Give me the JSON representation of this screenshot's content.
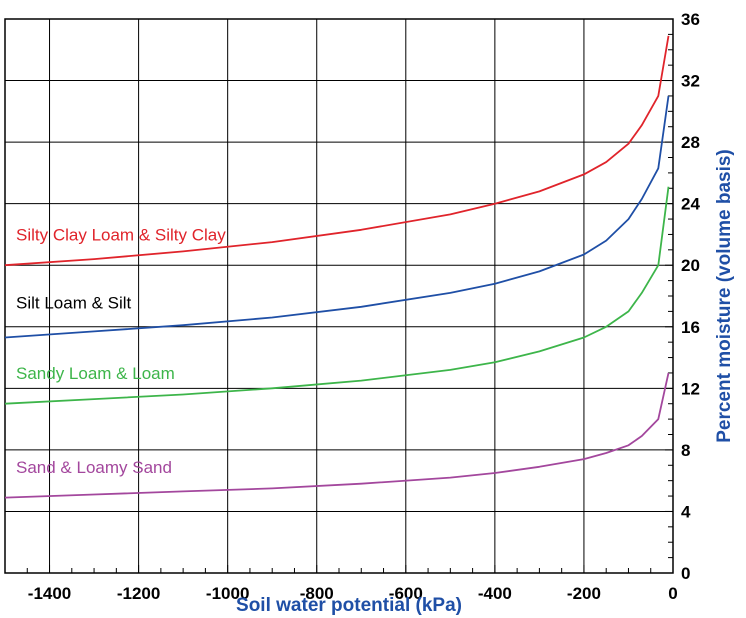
{
  "chart_data": {
    "type": "line",
    "title": "",
    "xlabel": "Soil water potential (kPa)",
    "ylabel": "Percent moisture (volume basis)",
    "xlim": [
      -1500,
      0
    ],
    "ylim": [
      0,
      36
    ],
    "xticks": [
      -1400,
      -1200,
      -1000,
      -800,
      -600,
      -400,
      -200,
      0
    ],
    "yticks": [
      0,
      4,
      8,
      12,
      16,
      20,
      24,
      28,
      32,
      36
    ],
    "grid": true,
    "series": [
      {
        "name": "Silty Clay Loam & Silty Clay",
        "color": "#e0242b",
        "x": [
          -1500,
          -1300,
          -1100,
          -900,
          -700,
          -500,
          -400,
          -300,
          -200,
          -150,
          -100,
          -70,
          -33,
          -10
        ],
        "y": [
          20.0,
          20.4,
          20.9,
          21.5,
          22.3,
          23.3,
          24.0,
          24.8,
          25.9,
          26.7,
          27.9,
          29.1,
          31.0,
          34.9
        ]
      },
      {
        "name": "Silt Loam & Silt",
        "color": "#1f4fa6",
        "x": [
          -1500,
          -1300,
          -1100,
          -900,
          -700,
          -500,
          -400,
          -300,
          -200,
          -150,
          -100,
          -70,
          -33,
          -10
        ],
        "y": [
          15.3,
          15.7,
          16.1,
          16.6,
          17.3,
          18.2,
          18.8,
          19.6,
          20.7,
          21.6,
          23.0,
          24.3,
          26.3,
          31.0
        ]
      },
      {
        "name": "Sandy Loam & Loam",
        "color": "#3db54a",
        "x": [
          -1500,
          -1300,
          -1100,
          -900,
          -700,
          -500,
          -400,
          -300,
          -200,
          -150,
          -100,
          -70,
          -33,
          -10
        ],
        "y": [
          11.0,
          11.3,
          11.6,
          12.0,
          12.5,
          13.2,
          13.7,
          14.4,
          15.3,
          16.0,
          17.0,
          18.2,
          20.0,
          25.1
        ]
      },
      {
        "name": "Sand & Loamy Sand",
        "color": "#a3479d",
        "x": [
          -1500,
          -1300,
          -1100,
          -900,
          -700,
          -500,
          -400,
          -300,
          -200,
          -150,
          -100,
          -70,
          -33,
          -10
        ],
        "y": [
          4.9,
          5.1,
          5.3,
          5.5,
          5.8,
          6.2,
          6.5,
          6.9,
          7.4,
          7.8,
          8.3,
          8.9,
          10.0,
          13.0
        ]
      }
    ],
    "colors": {
      "axis_title": "#1f4fa6",
      "frame": "#000000"
    }
  }
}
